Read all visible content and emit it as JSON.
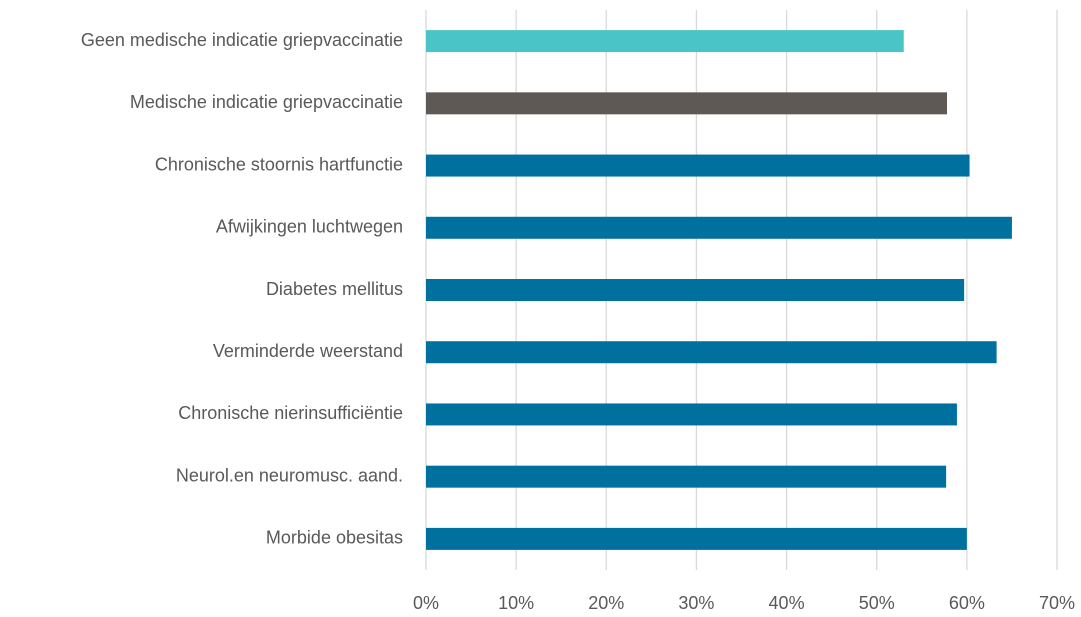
{
  "chart_data": {
    "type": "bar",
    "orientation": "horizontal",
    "categories": [
      "Geen medische indicatie griepvaccinatie",
      "Medische indicatie griepvaccinatie",
      "Chronische stoornis hartfunctie",
      "Afwijkingen luchtwegen",
      "Diabetes mellitus",
      "Verminderde weerstand",
      "Chronische nierinsufficiëntie",
      "Neurol.en neuromusc. aand.",
      "Morbide obesitas"
    ],
    "values": [
      53,
      57.8,
      60.3,
      65,
      59.7,
      63.3,
      58.9,
      57.7,
      60.0
    ],
    "colors": [
      "#4bc4c8",
      "#5e5955",
      "#00719f",
      "#00719f",
      "#00719f",
      "#00719f",
      "#00719f",
      "#00719f",
      "#00719f"
    ],
    "xlim": [
      0,
      70
    ],
    "xticks": [
      {
        "value": 0,
        "label": "0%"
      },
      {
        "value": 10,
        "label": "10%"
      },
      {
        "value": 20,
        "label": "20%"
      },
      {
        "value": 30,
        "label": "30%"
      },
      {
        "value": 40,
        "label": "40%"
      },
      {
        "value": 50,
        "label": "50%"
      },
      {
        "value": 60,
        "label": "60%"
      },
      {
        "value": 70,
        "label": "70%"
      }
    ],
    "grid": true
  }
}
